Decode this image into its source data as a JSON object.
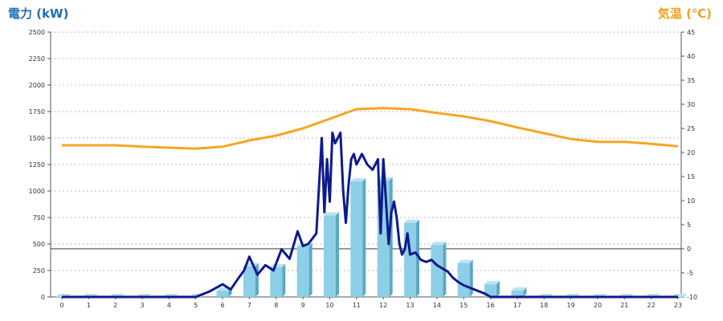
{
  "chart_data": {
    "type": "bar",
    "title": "",
    "left_axis_label": "電力 (kW)",
    "right_axis_label": "気温 (℃)",
    "x_categories": [
      "0",
      "1",
      "2",
      "3",
      "4",
      "5",
      "6",
      "7",
      "8",
      "9",
      "10",
      "11",
      "12",
      "13",
      "14",
      "15",
      "16",
      "17",
      "18",
      "19",
      "20",
      "21",
      "22",
      "23"
    ],
    "left_axis": {
      "ylim": [
        0,
        2500
      ],
      "ticks": [
        "0",
        "250",
        "500",
        "750",
        "1000",
        "1250",
        "1500",
        "1750",
        "2000",
        "2250",
        "2500"
      ]
    },
    "right_axis": {
      "ylim": [
        -10,
        45
      ],
      "ticks": [
        "-10",
        "-5",
        "0",
        "5",
        "10",
        "15",
        "20",
        "25",
        "30",
        "35",
        "40",
        "45"
      ]
    },
    "grid": "horizontal dashed",
    "series": [
      {
        "kind": "bar",
        "axis": "left",
        "values": [
          0,
          0,
          0,
          0,
          0,
          0,
          60,
          290,
          280,
          480,
          770,
          1090,
          1100,
          700,
          490,
          320,
          120,
          60,
          0,
          0,
          0,
          0,
          0,
          0
        ]
      },
      {
        "kind": "line",
        "axis": "left",
        "x": [
          0,
          1,
          2,
          3,
          4,
          5,
          5.5,
          6,
          6.3,
          6.6,
          6.8,
          7,
          7.3,
          7.6,
          7.9,
          8.2,
          8.5,
          8.8,
          9,
          9.2,
          9.5,
          9.7,
          9.8,
          9.9,
          10,
          10.1,
          10.2,
          10.3,
          10.4,
          10.5,
          10.6,
          10.7,
          10.8,
          10.9,
          11,
          11.2,
          11.4,
          11.6,
          11.8,
          11.9,
          12,
          12.1,
          12.2,
          12.3,
          12.4,
          12.5,
          12.6,
          12.7,
          12.8,
          12.9,
          13,
          13.2,
          13.4,
          13.6,
          13.8,
          14,
          14.2,
          14.4,
          14.6,
          14.8,
          15,
          15.2,
          15.4,
          15.6,
          15.8,
          16,
          16.2,
          16.4,
          16.6,
          16.8,
          17,
          18,
          19,
          20,
          21,
          22,
          23
        ],
        "values": [
          0,
          0,
          0,
          0,
          0,
          0,
          50,
          120,
          70,
          180,
          250,
          380,
          210,
          300,
          250,
          450,
          360,
          620,
          480,
          500,
          600,
          1500,
          800,
          1300,
          900,
          1550,
          1450,
          1500,
          1550,
          1000,
          700,
          1050,
          1300,
          1350,
          1250,
          1350,
          1250,
          1200,
          1300,
          600,
          1300,
          900,
          500,
          800,
          900,
          750,
          500,
          400,
          450,
          600,
          400,
          420,
          350,
          330,
          350,
          300,
          270,
          240,
          180,
          140,
          110,
          90,
          70,
          50,
          30,
          0,
          0,
          0,
          0,
          0,
          0,
          0,
          0,
          0,
          0,
          0,
          0
        ]
      },
      {
        "kind": "line",
        "axis": "right",
        "values": [
          21.5,
          21.5,
          21.5,
          21.2,
          21.0,
          20.8,
          21.2,
          22.5,
          23.5,
          25.0,
          27.0,
          29.0,
          29.2,
          29.0,
          28.2,
          27.5,
          26.5,
          25.2,
          24.0,
          22.8,
          22.2,
          22.2,
          21.8,
          21.3
        ]
      }
    ],
    "colors": {
      "bar": "#8dcfe6",
      "bar_side": "#5ea7c4",
      "bar_top": "#b8e4f3",
      "power_line": "#0e1a8c",
      "temp_line": "#f5a623",
      "left_title": "#1e6fb5",
      "right_title": "#f0a020",
      "grid": "#bbbbbb",
      "zero_line": "#333333"
    }
  }
}
